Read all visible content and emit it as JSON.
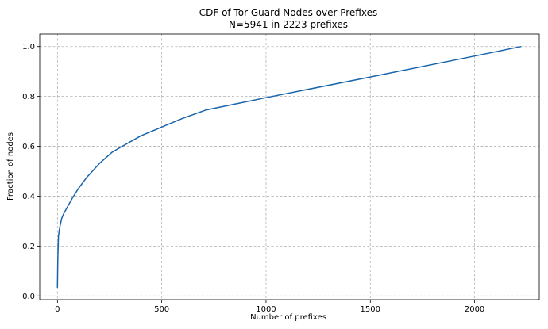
{
  "chart_data": {
    "type": "line",
    "title": "CDF of Tor Guard Nodes over Prefixes",
    "subtitle": "N=5941 in 2223 prefixes",
    "xlabel": "Number of prefixes",
    "ylabel": "Fraction of nodes",
    "xlim": [
      -85,
      2310
    ],
    "ylim": [
      -0.015,
      1.05
    ],
    "xticks": [
      0,
      500,
      1000,
      1500,
      2000
    ],
    "yticks": [
      0.0,
      0.2,
      0.4,
      0.6,
      0.8,
      1.0
    ],
    "xtick_labels": [
      "0",
      "500",
      "1000",
      "1500",
      "2000"
    ],
    "ytick_labels": [
      "0.0",
      "0.2",
      "0.4",
      "0.6",
      "0.8",
      "1.0"
    ],
    "grid": true,
    "line_color": "#1764ab",
    "series": [
      {
        "x": [
          0,
          2,
          5,
          10,
          20,
          30,
          50,
          70,
          100,
          140,
          200,
          260,
          300,
          400,
          500,
          600,
          710,
          1000,
          1500,
          2000,
          2223
        ],
        "y": [
          0.033,
          0.15,
          0.24,
          0.27,
          0.31,
          0.33,
          0.36,
          0.39,
          0.43,
          0.475,
          0.53,
          0.575,
          0.595,
          0.642,
          0.677,
          0.712,
          0.745,
          0.795,
          0.878,
          0.962,
          1.0
        ]
      }
    ]
  }
}
